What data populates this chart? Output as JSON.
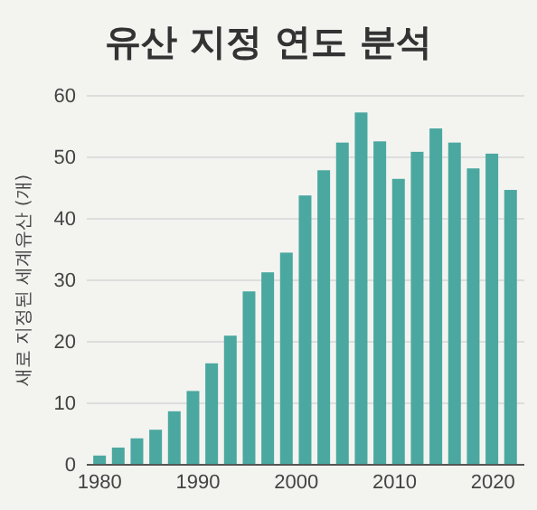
{
  "chart_data": {
    "type": "bar",
    "title": "유산 지정 연도 분석",
    "ylabel": "새로 지정된 세계유산 (개)",
    "x": [
      1980,
      1981.9,
      1983.8,
      1985.7,
      1987.6,
      1989.5,
      1991.4,
      1993.3,
      1995.2,
      1997.1,
      1999,
      2000.9,
      2002.8,
      2004.7,
      2006.6,
      2008.5,
      2010.4,
      2012.3,
      2014.2,
      2016.1,
      2018,
      2019.9,
      2021.8
    ],
    "values": [
      1.5,
      2.8,
      4.3,
      5.7,
      8.7,
      12,
      16.5,
      21,
      28.2,
      31.3,
      34.5,
      43.8,
      47.9,
      52.4,
      57.3,
      52.6,
      46.5,
      50.9,
      54.7,
      52.4,
      48.2,
      50.6,
      44.7
    ],
    "color": "#4aa8a0",
    "xlim": [
      1978.7,
      2023.2
    ],
    "xticks": [
      1980,
      1990,
      2000,
      2010,
      2020
    ],
    "ylim": [
      0,
      60
    ],
    "yticks": [
      0,
      10,
      20,
      30,
      40,
      50,
      60
    ],
    "grid": "y"
  }
}
